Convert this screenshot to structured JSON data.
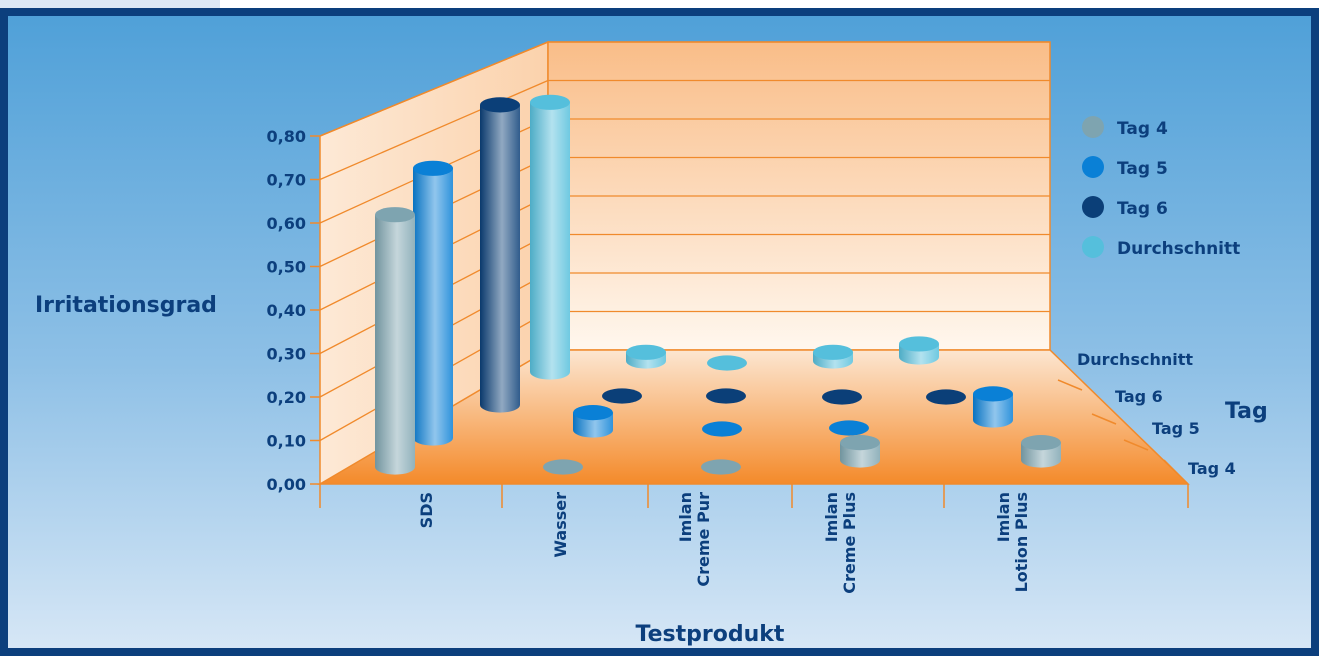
{
  "chart_data": {
    "type": "bar",
    "title": "",
    "xlabel": "Testprodukt",
    "ylabel": "Irritationsgrad",
    "zlabel": "Tag",
    "ylim": [
      0,
      0.8
    ],
    "yticks": [
      "0,00",
      "0,10",
      "0,20",
      "0,30",
      "0,40",
      "0,50",
      "0,60",
      "0,70",
      "0,80"
    ],
    "categories": [
      [
        "SDS"
      ],
      [
        "Wasser"
      ],
      [
        "Imlan",
        "Creme Pur"
      ],
      [
        "Imlan",
        "Creme Plus"
      ],
      [
        "Imlan",
        "Lotion Plus"
      ]
    ],
    "depth_labels": [
      "Tag 4",
      "Tag 5",
      "Tag 6",
      "Durchschnitt"
    ],
    "series": [
      {
        "name": "Tag 4",
        "color": "#7ea4b0",
        "values": [
          0.58,
          0.0,
          0.0,
          0.04,
          0.04
        ]
      },
      {
        "name": "Tag 5",
        "color": "#0a80d6",
        "values": [
          0.62,
          0.04,
          0.0,
          0.0,
          0.06
        ]
      },
      {
        "name": "Tag 6",
        "color": "#0b3f78",
        "values": [
          0.69,
          0.0,
          0.0,
          0.0,
          0.0
        ]
      },
      {
        "name": "Durchschnitt",
        "color": "#55bfdc",
        "values": [
          0.62,
          0.02,
          0.0,
          0.02,
          0.03
        ]
      }
    ],
    "legend": {
      "placement": "right"
    },
    "grid": true
  }
}
